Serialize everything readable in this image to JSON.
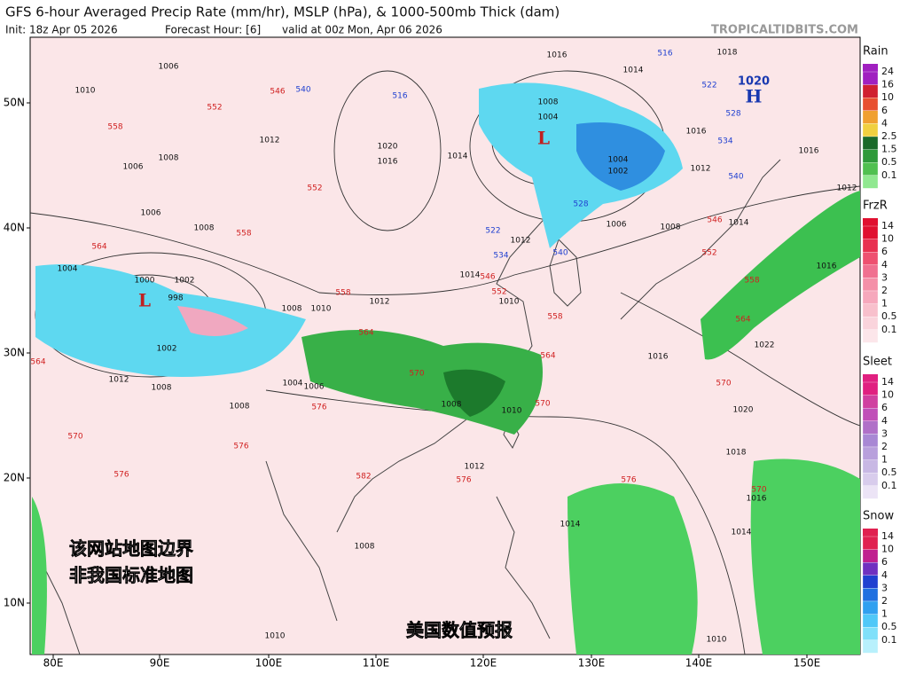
{
  "header": {
    "title": "GFS 6-hour Averaged Precip Rate (mm/hr), MSLP (hPa), & 1000-500mb Thick (dam)",
    "init": "Init: 18z Apr 05 2026",
    "forecast": "Forecast Hour: [6]",
    "valid": "valid at 00z Mon, Apr 06 2026",
    "site": "TROPICALTIDBITS.COM"
  },
  "axes": {
    "lat_labels": [
      "50N",
      "40N",
      "30N",
      "20N",
      "10N"
    ],
    "lon_labels": [
      "80E",
      "90E",
      "100E",
      "110E",
      "120E",
      "130E",
      "140E",
      "150E"
    ]
  },
  "legends": [
    {
      "title": "Rain",
      "labels": [
        "24",
        "16",
        "10",
        "6",
        "4",
        "2.5",
        "1.5",
        "0.5",
        "0.1"
      ],
      "colors": [
        "#a020c0",
        "#d02030",
        "#e85030",
        "#f0a030",
        "#f0d040",
        "#1a6a2a",
        "#2e9a3a",
        "#50c050",
        "#90e890"
      ]
    },
    {
      "title": "FrzR",
      "labels": [
        "14",
        "10",
        "6",
        "4",
        "3",
        "2",
        "1",
        "0.5",
        "0.1"
      ],
      "colors": [
        "#e01030",
        "#e83050",
        "#ee5070",
        "#f07090",
        "#f490a8",
        "#f6a8bc",
        "#f8c0cc",
        "#fad4dc",
        "#fce6ea"
      ]
    },
    {
      "title": "Sleet",
      "labels": [
        "14",
        "10",
        "6",
        "4",
        "3",
        "2",
        "1",
        "0.5",
        "0.1"
      ],
      "colors": [
        "#e02080",
        "#d040a0",
        "#c050b8",
        "#b070c8",
        "#a888d4",
        "#b8a0dc",
        "#c8b8e4",
        "#d8ccec",
        "#ece4f6"
      ]
    },
    {
      "title": "Snow",
      "labels": [
        "14",
        "10",
        "6",
        "4",
        "3",
        "2",
        "1",
        "0.5",
        "0.1"
      ],
      "colors": [
        "#e02050",
        "#c02090",
        "#7030c0",
        "#2040d0",
        "#2070e0",
        "#30a0f0",
        "#50c8f8",
        "#80e0fa",
        "#b8f0fc"
      ]
    }
  ],
  "centers": [
    {
      "symbol": "L"
    },
    {
      "symbol": "L"
    },
    {
      "symbol": "H",
      "value": 1020
    }
  ],
  "isobar_labels": [
    1010,
    1006,
    1008,
    1012,
    1006,
    1006,
    1008,
    1020,
    1016,
    1014,
    1016,
    1014,
    1008,
    1004,
    1004,
    1002,
    1012,
    1016,
    1008,
    1006,
    1012,
    1014,
    1010,
    1012,
    1010,
    1008,
    1004,
    1006,
    1008,
    1010,
    1012,
    1014,
    1014,
    1016,
    1018,
    1020,
    1022,
    1016,
    1016,
    1014,
    1012,
    1018,
    1016,
    1008,
    1010,
    1010,
    1004,
    1000,
    1002,
    998,
    1002,
    1008,
    1008,
    1012
  ],
  "thickness_labels": [
    546,
    552,
    558,
    552,
    558,
    564,
    558,
    564,
    570,
    576,
    582,
    576,
    576,
    570,
    564,
    558,
    552,
    546,
    540,
    534,
    528,
    522,
    516,
    528,
    534,
    522,
    540,
    546,
    552,
    558,
    564,
    570,
    576,
    570,
    576,
    540,
    516,
    564,
    570
  ],
  "overlay": {
    "notice_1": "该网站地图边界",
    "notice_2": "非我国标准地图",
    "source": "美国数值预报"
  }
}
